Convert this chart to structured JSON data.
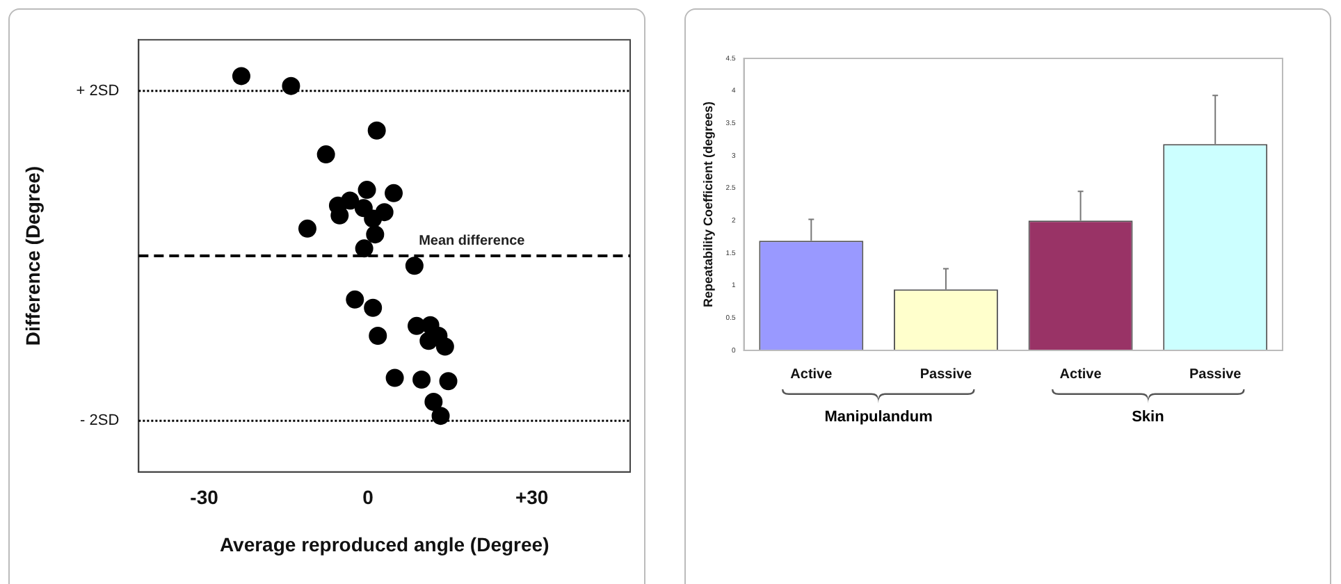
{
  "chart_data": [
    {
      "type": "scatter",
      "xlabel": "Average reproduced angle (Degree)",
      "ylabel": "Difference (Degree)",
      "x": [
        -23.2,
        -14.1,
        1.6,
        -7.7,
        -0.2,
        4.7,
        -3.3,
        -5.5,
        -0.8,
        -5.2,
        3.0,
        0.9,
        -11.1,
        1.3,
        -0.7,
        8.5,
        -2.4,
        0.9,
        8.9,
        11.4,
        12.9,
        11.1,
        1.8,
        14.1,
        4.9,
        9.8,
        14.7,
        12.0,
        13.3
      ],
      "series": [
        {
          "color": "#000000",
          "values": [
            2.18,
            2.06,
            1.52,
            1.23,
            0.8,
            0.76,
            0.67,
            0.61,
            0.58,
            0.49,
            0.53,
            0.45,
            0.33,
            0.26,
            0.09,
            -0.12,
            -0.53,
            -0.63,
            -0.85,
            -0.84,
            -0.97,
            -1.03,
            -0.97,
            -1.1,
            -1.48,
            -1.5,
            -1.52,
            -1.77,
            -1.94
          ]
        }
      ],
      "xlim": [
        -42,
        48
      ],
      "xticks": [
        {
          "value": -30,
          "label": "-30"
        },
        0,
        {
          "value": 30,
          "label": "+30"
        }
      ],
      "ylim": [
        -2.62,
        2.62
      ],
      "yticks": [
        {
          "value": 2,
          "label": "+ 2SD"
        },
        {
          "value": -2,
          "label": "- 2SD"
        }
      ],
      "ref_lines": [
        {
          "axis": "y",
          "value": 2,
          "line_style": "dotted"
        },
        {
          "axis": "y",
          "value": 0,
          "label": "Mean difference",
          "line_style": "dashed"
        },
        {
          "axis": "y",
          "value": -2,
          "line_style": "dotted"
        }
      ],
      "marker": "circle",
      "grid": false,
      "legend": false
    },
    {
      "type": "bar",
      "ylabel": "Repeatability Coefficient (degrees)",
      "categories": [
        "Active",
        "Passive",
        "Active",
        "Passive"
      ],
      "values": [
        1.69,
        0.94,
        2.0,
        3.18
      ],
      "colors": [
        "#9999ff",
        "#ffffcc",
        "#993366",
        "#ccffff"
      ],
      "errors": [
        [
          1.69,
          2.02
        ],
        [
          0.94,
          1.26
        ],
        [
          2.0,
          2.45
        ],
        [
          3.18,
          3.93
        ]
      ],
      "ylim": [
        0,
        4.5
      ],
      "yticks": [
        0,
        0.5,
        1,
        1.5,
        2,
        2.5,
        3,
        3.5,
        4,
        4.5
      ],
      "annotations": [
        "Manipulandum",
        "Skin"
      ],
      "grid": false,
      "legend": false
    }
  ]
}
